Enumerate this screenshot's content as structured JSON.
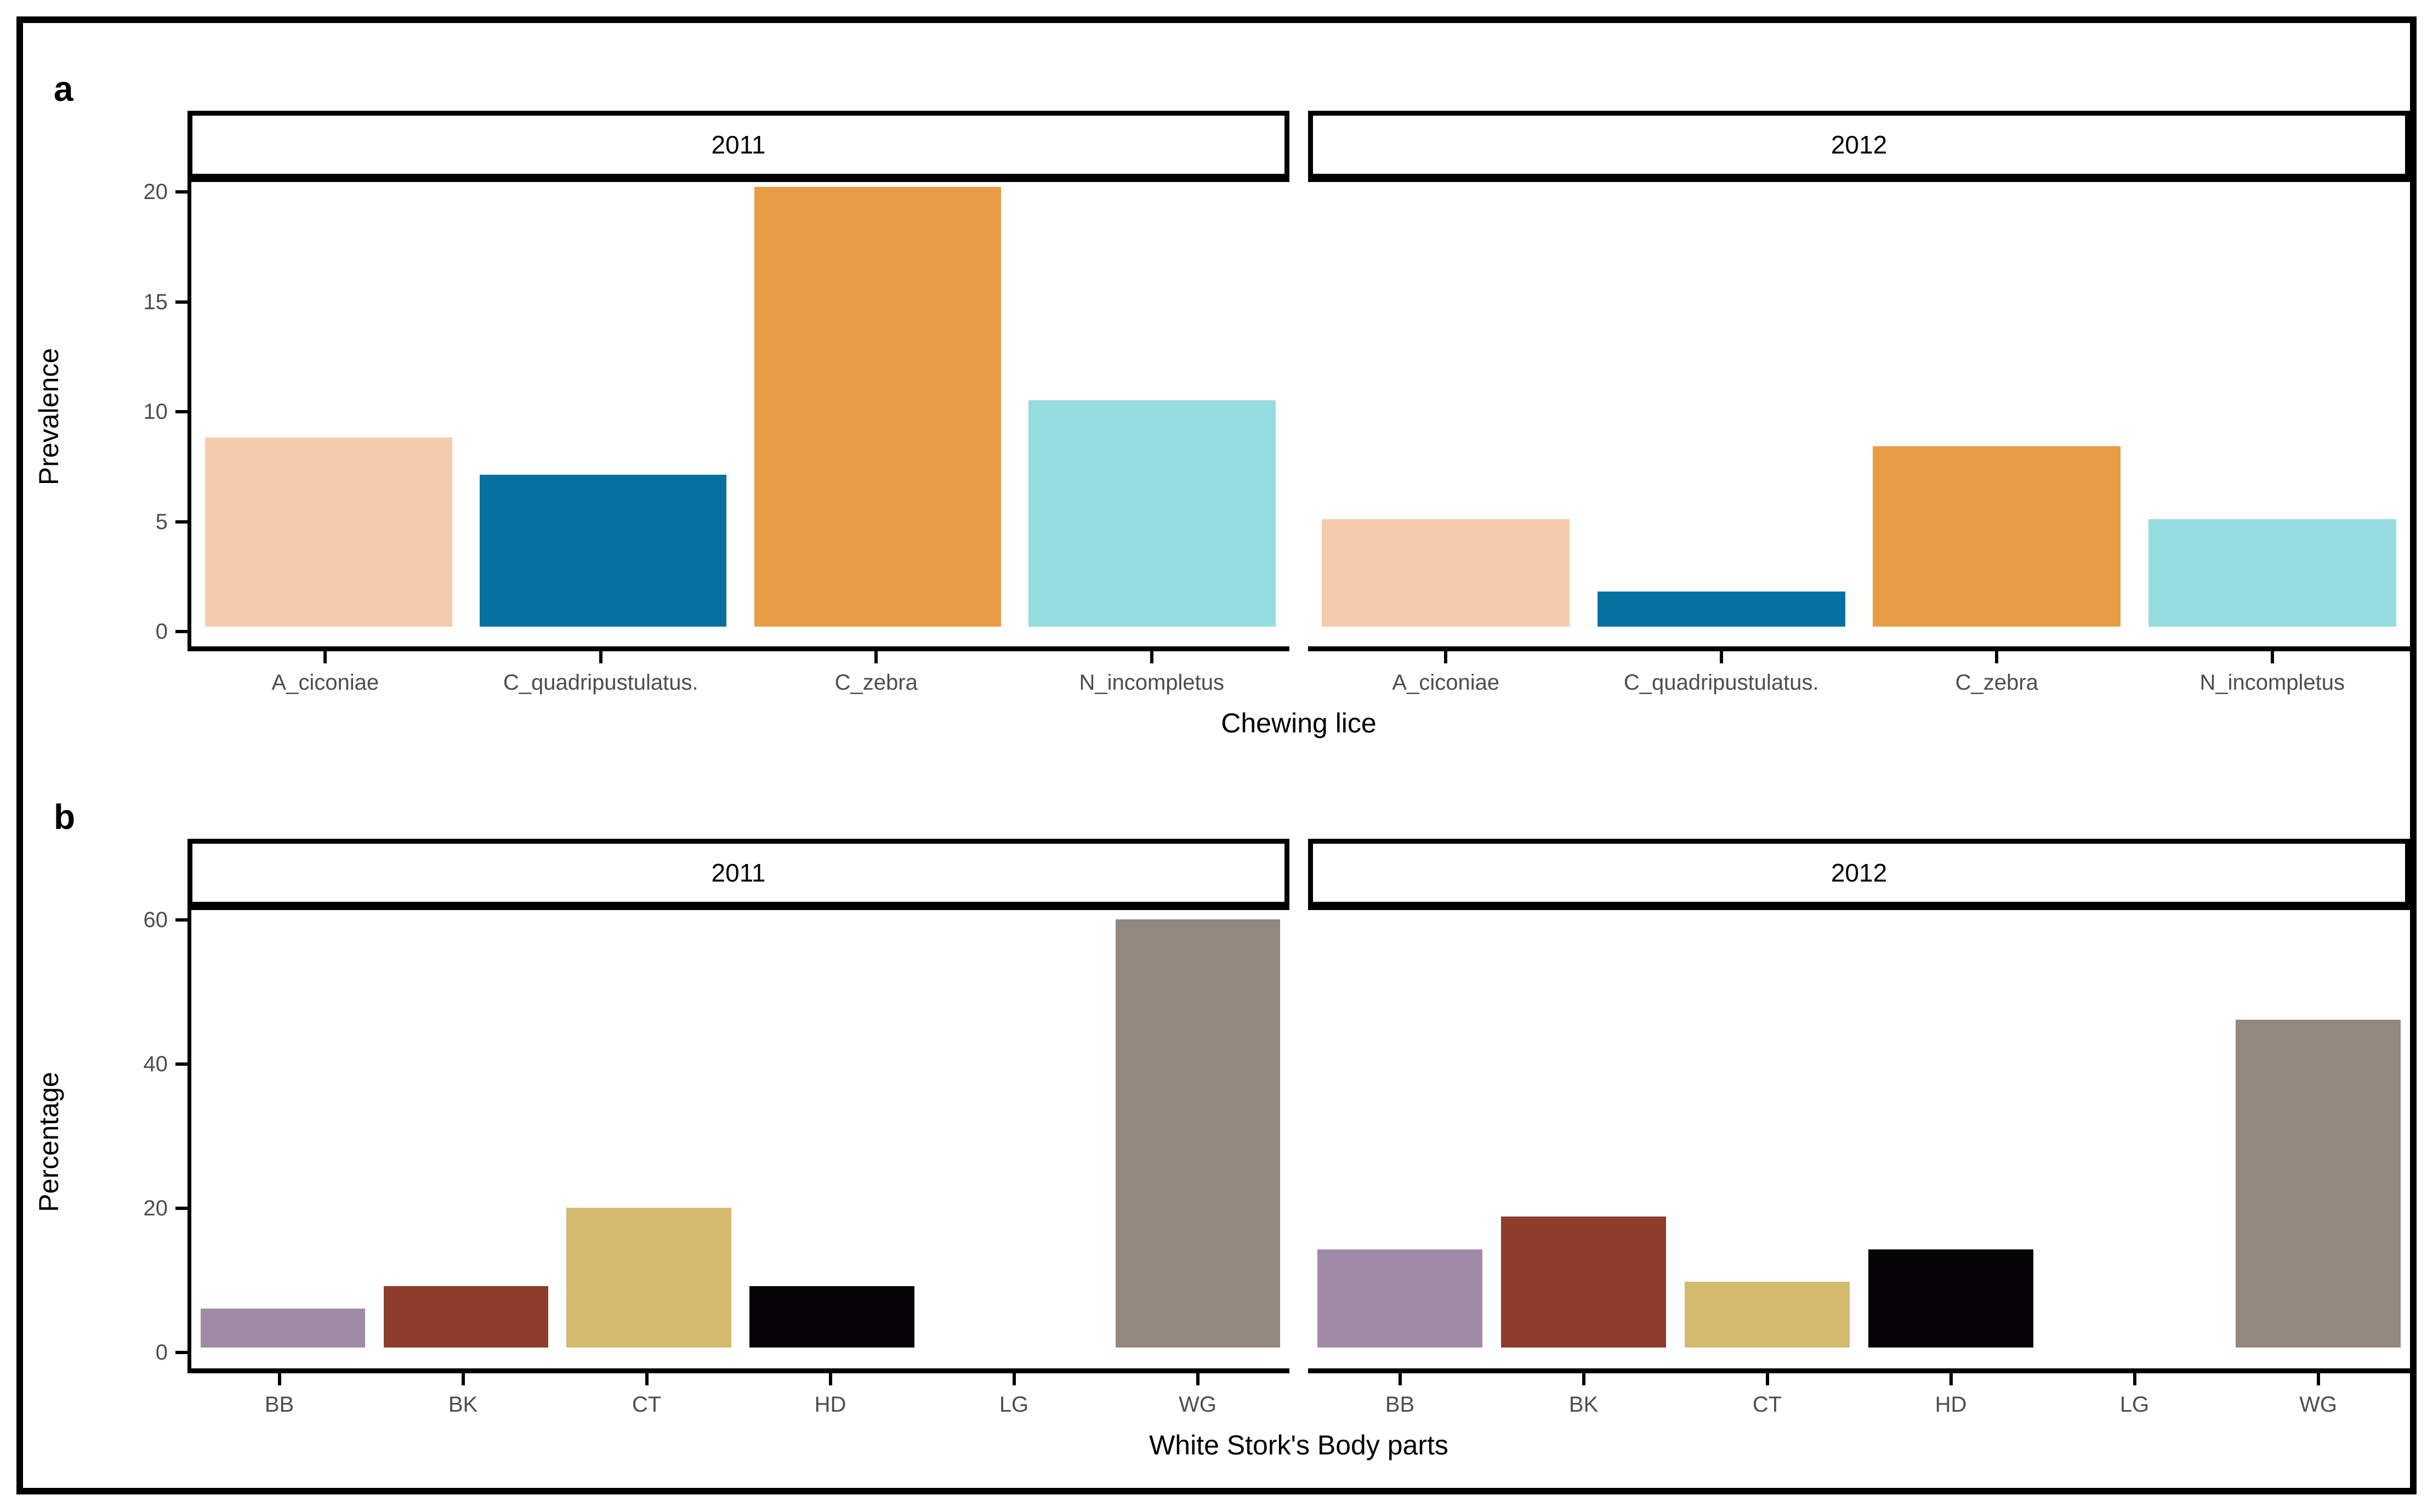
{
  "figure": {
    "background": "#FFFFFF",
    "frame_color": "#000000",
    "axis_text_color": "#4D4D4D",
    "axis_title_color": "#000000"
  },
  "chart_data": [
    {
      "id": "a",
      "type": "bar",
      "panel_letter": "a",
      "facets": [
        "2011",
        "2012"
      ],
      "categories": [
        "A_ciconiae",
        "C_quadripustulatus.",
        "C_zebra",
        "N_incompletus"
      ],
      "series": [
        {
          "name": "2011",
          "values": [
            8.6,
            6.9,
            20.0,
            10.3
          ]
        },
        {
          "name": "2012",
          "values": [
            4.9,
            1.6,
            8.2,
            4.9
          ]
        }
      ],
      "bar_colors": [
        "#F5CBAC",
        "#0471A1",
        "#E89C45",
        "#95DDDE"
      ],
      "ylabel": "Prevalence",
      "xlabel": "Chewing lice",
      "yticks": [
        0,
        5,
        10,
        15,
        20
      ],
      "ylim": [
        0,
        21
      ],
      "grid": false,
      "legend": "none"
    },
    {
      "id": "b",
      "type": "bar",
      "panel_letter": "b",
      "facets": [
        "2011",
        "2012"
      ],
      "categories": [
        "BB",
        "BK",
        "CT",
        "HD",
        "LG",
        "WG"
      ],
      "series": [
        {
          "name": "2011",
          "values": [
            5.4,
            8.5,
            19.4,
            8.5,
            0,
            59.4
          ]
        },
        {
          "name": "2012",
          "values": [
            13.6,
            18.2,
            9.1,
            13.6,
            0,
            45.5
          ]
        }
      ],
      "bar_colors": [
        "#A189A8",
        "#8E3C2B",
        "#D3BA6E",
        "#060407",
        null,
        "#92887F"
      ],
      "ylabel": "Percentage",
      "xlabel": "White Stork's Body parts",
      "yticks": [
        0,
        20,
        40,
        60
      ],
      "ylim": [
        0,
        63
      ],
      "grid": false,
      "legend": "none"
    }
  ]
}
